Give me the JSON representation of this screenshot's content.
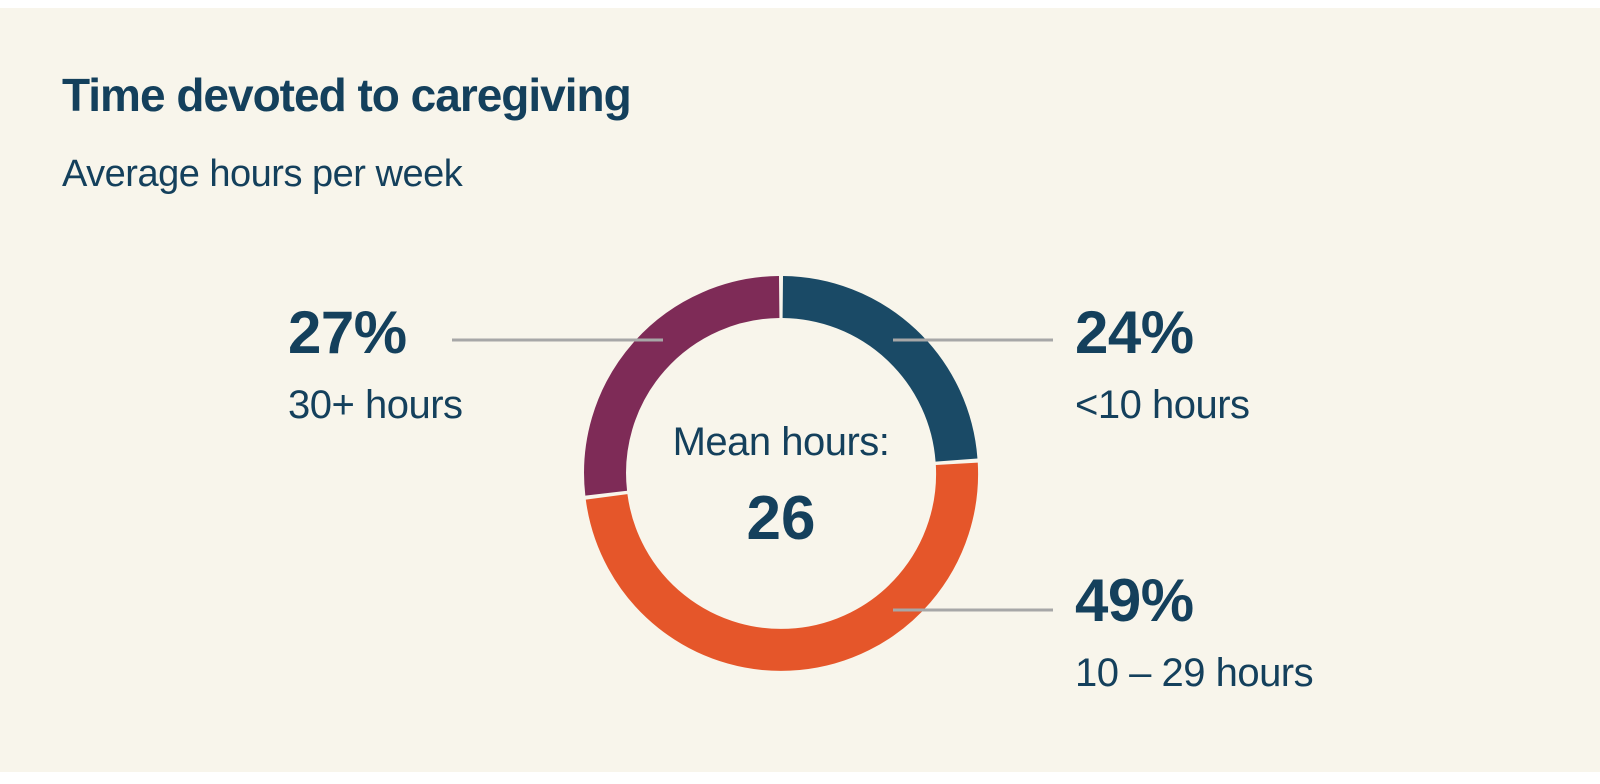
{
  "page": {
    "background_color": "#F8F5EB",
    "text_color": "#14405C"
  },
  "chart_data": {
    "type": "pie",
    "variant": "donut",
    "title": "Time devoted to caregiving",
    "subtitle": "Average hours per week",
    "center_label": "Mean hours:",
    "center_value": "26",
    "start_angle_deg": 0,
    "direction": "clockwise",
    "leader_line_color": "#A7A7A7",
    "segments": [
      {
        "label": "<10 hours",
        "value": 24,
        "percent_label": "24%",
        "color": "#1A4A66",
        "label_position": "right-top"
      },
      {
        "label": "10 – 29 hours",
        "value": 49,
        "percent_label": "49%",
        "color": "#E5562A",
        "label_position": "right-bottom"
      },
      {
        "label": "30+ hours",
        "value": 27,
        "percent_label": "27%",
        "color": "#7E2B57",
        "label_position": "left-top"
      }
    ]
  }
}
